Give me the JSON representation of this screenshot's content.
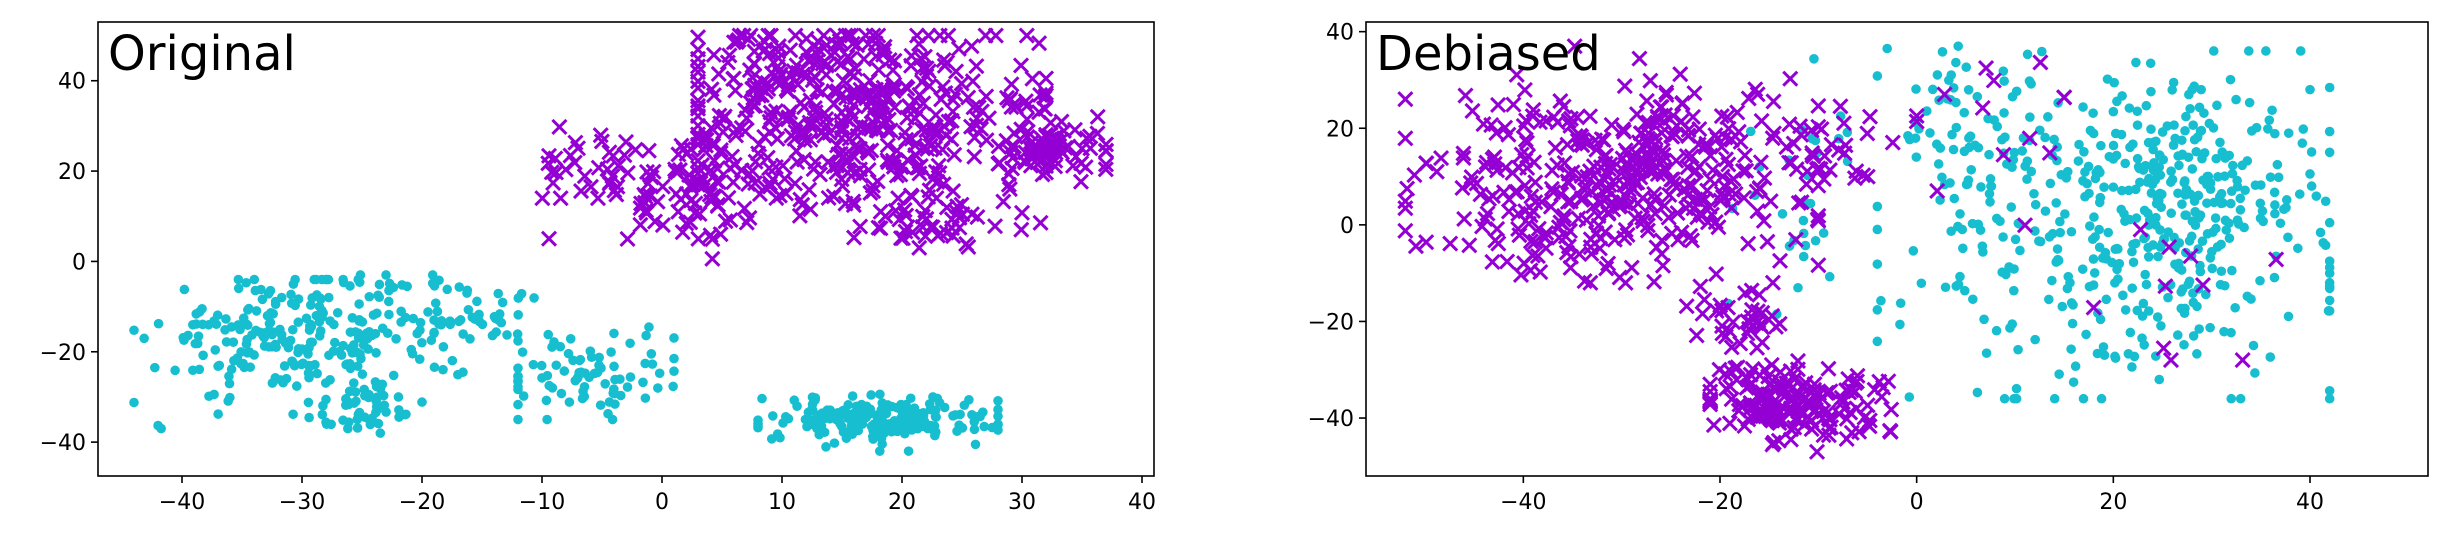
{
  "chart_data": [
    {
      "type": "scatter",
      "title": "Original",
      "xlabel": "",
      "ylabel": "",
      "xlim": [
        -47,
        41
      ],
      "ylim": [
        -47.5,
        53
      ],
      "xticks": [
        -40,
        -30,
        -20,
        -10,
        0,
        10,
        20,
        30,
        40
      ],
      "yticks": [
        -40,
        -20,
        0,
        20,
        40
      ],
      "xtick_labels": [
        "−40",
        "−30",
        "−20",
        "−10",
        "0",
        "10",
        "20",
        "30",
        "40"
      ],
      "ytick_labels": [
        "−40",
        "−20",
        "0",
        "20",
        "40"
      ],
      "grid": false,
      "legend": "none",
      "series": [
        {
          "marker": "dot",
          "color": "#17becf",
          "clusters": [
            {
              "cx": -31,
              "cy": -17,
              "sx": 5.5,
              "sy": 7,
              "n": 230,
              "xmin": -44,
              "xmax": -19,
              "ymin": -37,
              "ymax": -4
            },
            {
              "cx": -21,
              "cy": -14,
              "sx": 3,
              "sy": 7,
              "n": 50,
              "xmin": -26,
              "xmax": -16,
              "ymin": -30,
              "ymax": -3
            },
            {
              "cx": -24,
              "cy": -32,
              "sx": 2.5,
              "sy": 3,
              "n": 40,
              "xmin": -29,
              "xmax": -20,
              "ymin": -38,
              "ymax": -26
            },
            {
              "cx": -14,
              "cy": -12,
              "sx": 3,
              "sy": 3,
              "n": 30,
              "xmin": -19,
              "xmax": -9,
              "ymin": -18,
              "ymax": -7
            },
            {
              "cx": -6,
              "cy": -25,
              "sx": 4,
              "sy": 5,
              "n": 80,
              "xmin": -12,
              "xmax": 1,
              "ymin": -35,
              "ymax": -12
            },
            {
              "cx": 18,
              "cy": -35,
              "sx": 5,
              "sy": 2.5,
              "n": 200,
              "xmin": 8,
              "xmax": 28,
              "ymin": -42,
              "ymax": -27
            }
          ]
        },
        {
          "marker": "x",
          "color": "#9400d3",
          "clusters": [
            {
              "cx": 17,
              "cy": 30,
              "sx": 8,
              "sy": 11,
              "n": 420,
              "xmin": 3,
              "xmax": 32,
              "ymin": -1,
              "ymax": 50
            },
            {
              "cx": 2,
              "cy": 17,
              "sx": 4,
              "sy": 6,
              "n": 90,
              "xmin": -10,
              "xmax": 9,
              "ymin": 3,
              "ymax": 32
            },
            {
              "cx": 33,
              "cy": 25,
              "sx": 2.5,
              "sy": 3,
              "n": 60,
              "xmin": 28,
              "xmax": 37,
              "ymin": 17,
              "ymax": 32
            },
            {
              "cx": 12,
              "cy": 44,
              "sx": 5,
              "sy": 3,
              "n": 60,
              "xmin": 3,
              "xmax": 26,
              "ymin": 38,
              "ymax": 50
            },
            {
              "cx": -7,
              "cy": 22,
              "sx": 2,
              "sy": 4,
              "n": 25,
              "xmin": -11,
              "xmax": -3,
              "ymin": 14,
              "ymax": 31
            },
            {
              "cx": 22,
              "cy": 8,
              "sx": 3,
              "sy": 3,
              "n": 40,
              "xmin": 16,
              "xmax": 28,
              "ymin": 3,
              "ymax": 14
            }
          ]
        }
      ]
    },
    {
      "type": "scatter",
      "title": "Debiased",
      "xlabel": "",
      "ylabel": "",
      "xlim": [
        -56,
        52
      ],
      "ylim": [
        -52,
        42
      ],
      "xticks": [
        -40,
        -20,
        0,
        20,
        40
      ],
      "yticks": [
        -40,
        -20,
        0,
        20,
        40
      ],
      "xtick_labels": [
        "−40",
        "−20",
        "0",
        "20",
        "40"
      ],
      "ytick_labels": [
        "−40",
        "−20",
        "0",
        "20",
        "40"
      ],
      "grid": false,
      "legend": "none",
      "series": [
        {
          "marker": "dot",
          "color": "#17becf",
          "clusters": [
            {
              "cx": 22,
              "cy": 0,
              "sx": 11,
              "sy": 16,
              "n": 420,
              "xmin": -4,
              "xmax": 42,
              "ymin": -36,
              "ymax": 36
            },
            {
              "cx": 30,
              "cy": 14,
              "sx": 5,
              "sy": 7,
              "n": 80,
              "xmin": 20,
              "xmax": 40,
              "ymin": 2,
              "ymax": 28
            },
            {
              "cx": 5,
              "cy": 22,
              "sx": 4,
              "sy": 7,
              "n": 50,
              "xmin": -3,
              "xmax": 15,
              "ymin": 8,
              "ymax": 37
            },
            {
              "cx": -12,
              "cy": 8,
              "sx": 4,
              "sy": 12,
              "n": 30,
              "xmin": -20,
              "xmax": -4,
              "ymin": -20,
              "ymax": 36
            }
          ]
        },
        {
          "marker": "x",
          "color": "#9400d3",
          "clusters": [
            {
              "cx": -30,
              "cy": 10,
              "sx": 9,
              "sy": 10,
              "n": 430,
              "xmin": -52,
              "xmax": -10,
              "ymin": -12,
              "ymax": 37
            },
            {
              "cx": -12,
              "cy": -37,
              "sx": 4.5,
              "sy": 4,
              "n": 170,
              "xmin": -21,
              "xmax": -1,
              "ymin": -47,
              "ymax": -26
            },
            {
              "cx": -18,
              "cy": -20,
              "sx": 3,
              "sy": 5,
              "n": 40,
              "xmin": -24,
              "xmax": -10,
              "ymin": -30,
              "ymax": -10
            },
            {
              "cx": -8,
              "cy": 15,
              "sx": 3,
              "sy": 6,
              "n": 25,
              "xmin": -13,
              "xmax": -2,
              "ymin": 2,
              "ymax": 28
            },
            {
              "cx": 8,
              "cy": 20,
              "sx": 6,
              "sy": 12,
              "n": 14,
              "xmin": 0,
              "xmax": 15,
              "ymin": -10,
              "ymax": 37
            },
            {
              "cx": 30,
              "cy": -15,
              "sx": 8,
              "sy": 12,
              "n": 10,
              "xmin": 18,
              "xmax": 47,
              "ymin": -28,
              "ymax": 16
            }
          ]
        }
      ]
    }
  ]
}
